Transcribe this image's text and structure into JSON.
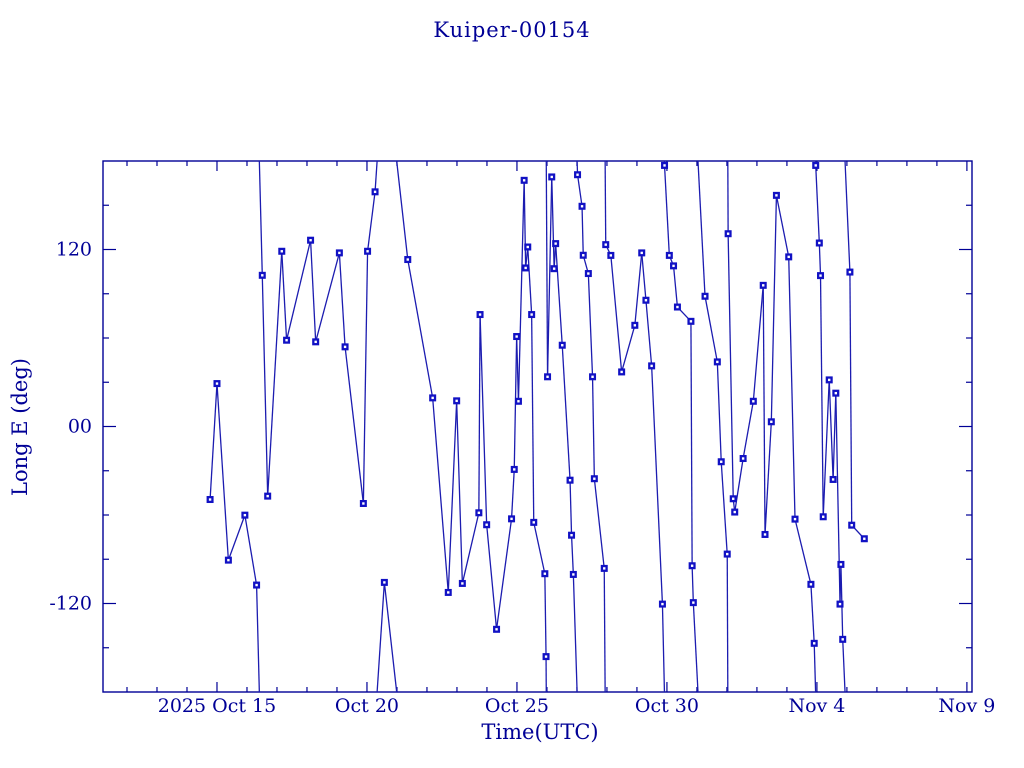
{
  "title": "Kuiper-00154",
  "axes": {
    "xlabel": "Time(UTC)",
    "ylabel": "Long E (deg)"
  },
  "colors": {
    "accent": "#000096",
    "line": "#1c1cb0",
    "marker": "#1111c4",
    "background": "#ffffff"
  },
  "chart_data": {
    "type": "line",
    "title": "Kuiper-00154",
    "xlabel": "Time(UTC)",
    "ylabel": "Long E (deg)",
    "x_unit": "days since 2025 Oct 15 00:00 UTC",
    "x_range_days": [
      -3.8,
      25.17
    ],
    "y_range": [
      -180,
      180
    ],
    "y_minor_step": 30,
    "x_minor_step_days": 1,
    "grid": false,
    "legend": "none",
    "wrap_threshold_deg": 185,
    "y_major_ticks": [
      {
        "value": 120,
        "label": "120"
      },
      {
        "value": 0,
        "label": "00"
      },
      {
        "value": -120,
        "label": "-120"
      }
    ],
    "x_major_ticks": [
      {
        "day": 0,
        "label": "2025 Oct 15"
      },
      {
        "day": 5,
        "label": "Oct 20"
      },
      {
        "day": 10,
        "label": "Oct 25"
      },
      {
        "day": 15,
        "label": "Oct 30"
      },
      {
        "day": 20,
        "label": "Nov  4"
      },
      {
        "day": 25,
        "label": "Nov  9"
      }
    ],
    "series": [
      {
        "name": "Long E",
        "marker": "square",
        "points": [
          [
            -0.23,
            -49.5
          ],
          [
            0.0,
            29.1
          ],
          [
            0.38,
            -90.6
          ],
          [
            0.93,
            -60.1
          ],
          [
            1.32,
            -107.5
          ],
          [
            1.51,
            102.5
          ],
          [
            1.69,
            -47.2
          ],
          [
            2.16,
            118.8
          ],
          [
            2.32,
            58.5
          ],
          [
            3.12,
            126.3
          ],
          [
            3.29,
            57.4
          ],
          [
            4.08,
            117.7
          ],
          [
            4.27,
            54.0
          ],
          [
            4.88,
            -52.2
          ],
          [
            5.02,
            118.8
          ],
          [
            5.27,
            159.1
          ],
          [
            5.58,
            -105.7
          ],
          [
            6.36,
            113.2
          ],
          [
            7.19,
            19.4
          ],
          [
            7.71,
            -112.5
          ],
          [
            7.99,
            17.4
          ],
          [
            8.18,
            -106.4
          ],
          [
            8.73,
            -58.5
          ],
          [
            8.77,
            75.9
          ],
          [
            8.99,
            -66.6
          ],
          [
            9.32,
            -137.5
          ],
          [
            9.82,
            -62.6
          ],
          [
            9.91,
            -29.1
          ],
          [
            9.99,
            61.0
          ],
          [
            10.05,
            17.1
          ],
          [
            10.24,
            166.9
          ],
          [
            10.29,
            107.5
          ],
          [
            10.36,
            121.7
          ],
          [
            10.49,
            75.9
          ],
          [
            10.56,
            -65.0
          ],
          [
            10.93,
            -99.8
          ],
          [
            10.97,
            -156.0
          ],
          [
            11.02,
            33.7
          ],
          [
            11.16,
            169.2
          ],
          [
            11.24,
            107.0
          ],
          [
            11.29,
            124.0
          ],
          [
            11.51,
            55.1
          ],
          [
            11.77,
            -36.4
          ],
          [
            11.82,
            -73.7
          ],
          [
            11.88,
            -100.3
          ],
          [
            12.02,
            170.7
          ],
          [
            12.17,
            149.3
          ],
          [
            12.21,
            116.1
          ],
          [
            12.38,
            103.7
          ],
          [
            12.52,
            33.7
          ],
          [
            12.58,
            -35.4
          ],
          [
            12.91,
            -96.2
          ],
          [
            12.96,
            123.3
          ],
          [
            13.13,
            116.0
          ],
          [
            13.49,
            37.0
          ],
          [
            13.93,
            68.6
          ],
          [
            14.16,
            117.7
          ],
          [
            14.3,
            85.6
          ],
          [
            14.49,
            41.1
          ],
          [
            14.85,
            -120.4
          ],
          [
            14.92,
            177.0
          ],
          [
            15.08,
            116.0
          ],
          [
            15.22,
            108.9
          ],
          [
            15.35,
            81.0
          ],
          [
            15.8,
            71.3
          ],
          [
            15.84,
            -94.4
          ],
          [
            15.88,
            -119.4
          ],
          [
            16.27,
            88.3
          ],
          [
            16.68,
            43.8
          ],
          [
            16.81,
            -23.9
          ],
          [
            17.01,
            -86.5
          ],
          [
            17.04,
            130.7
          ],
          [
            17.21,
            -49.0
          ],
          [
            17.26,
            -58.0
          ],
          [
            17.54,
            -21.7
          ],
          [
            17.88,
            17.1
          ],
          [
            18.21,
            95.7
          ],
          [
            18.27,
            -73.2
          ],
          [
            18.48,
            3.2
          ],
          [
            18.65,
            156.7
          ],
          [
            19.06,
            115.0
          ],
          [
            19.27,
            -62.8
          ],
          [
            19.8,
            -107.0
          ],
          [
            19.91,
            -147.0
          ],
          [
            19.96,
            177.0
          ],
          [
            20.08,
            124.4
          ],
          [
            20.12,
            102.3
          ],
          [
            20.21,
            -61.2
          ],
          [
            20.41,
            31.6
          ],
          [
            20.54,
            -35.9
          ],
          [
            20.63,
            22.6
          ],
          [
            20.77,
            -120.4
          ],
          [
            20.8,
            -93.5
          ],
          [
            20.86,
            -144.3
          ],
          [
            21.1,
            104.7
          ],
          [
            21.16,
            -66.9
          ],
          [
            21.58,
            -76.1
          ]
        ]
      }
    ]
  }
}
